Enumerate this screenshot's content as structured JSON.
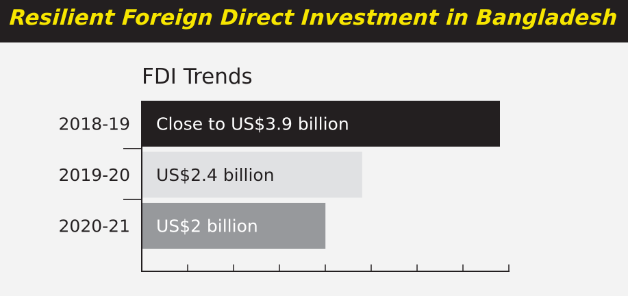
{
  "header": {
    "title": "Resilient Foreign Direct Investment in Bangladesh"
  },
  "chart_data": {
    "type": "bar",
    "orientation": "horizontal",
    "title": "FDI Trends",
    "categories": [
      "2018-19",
      "2019-20",
      "2020-21"
    ],
    "values": [
      3.9,
      2.4,
      2.0
    ],
    "data_labels": [
      "Close to US$3.9 billion",
      "US$2.4 billion",
      "US$2 billion"
    ],
    "unit": "US$ billion",
    "xlim": [
      0,
      4
    ],
    "grid": false,
    "bar_colors": [
      "#231f20",
      "#e0e1e3",
      "#97999c"
    ],
    "label_colors": [
      "#ffffff",
      "#231f20",
      "#ffffff"
    ]
  },
  "colors": {
    "header_bg": "#231f20",
    "header_text": "#f7e600",
    "background": "#f3f3f3",
    "axis": "#231f20"
  }
}
